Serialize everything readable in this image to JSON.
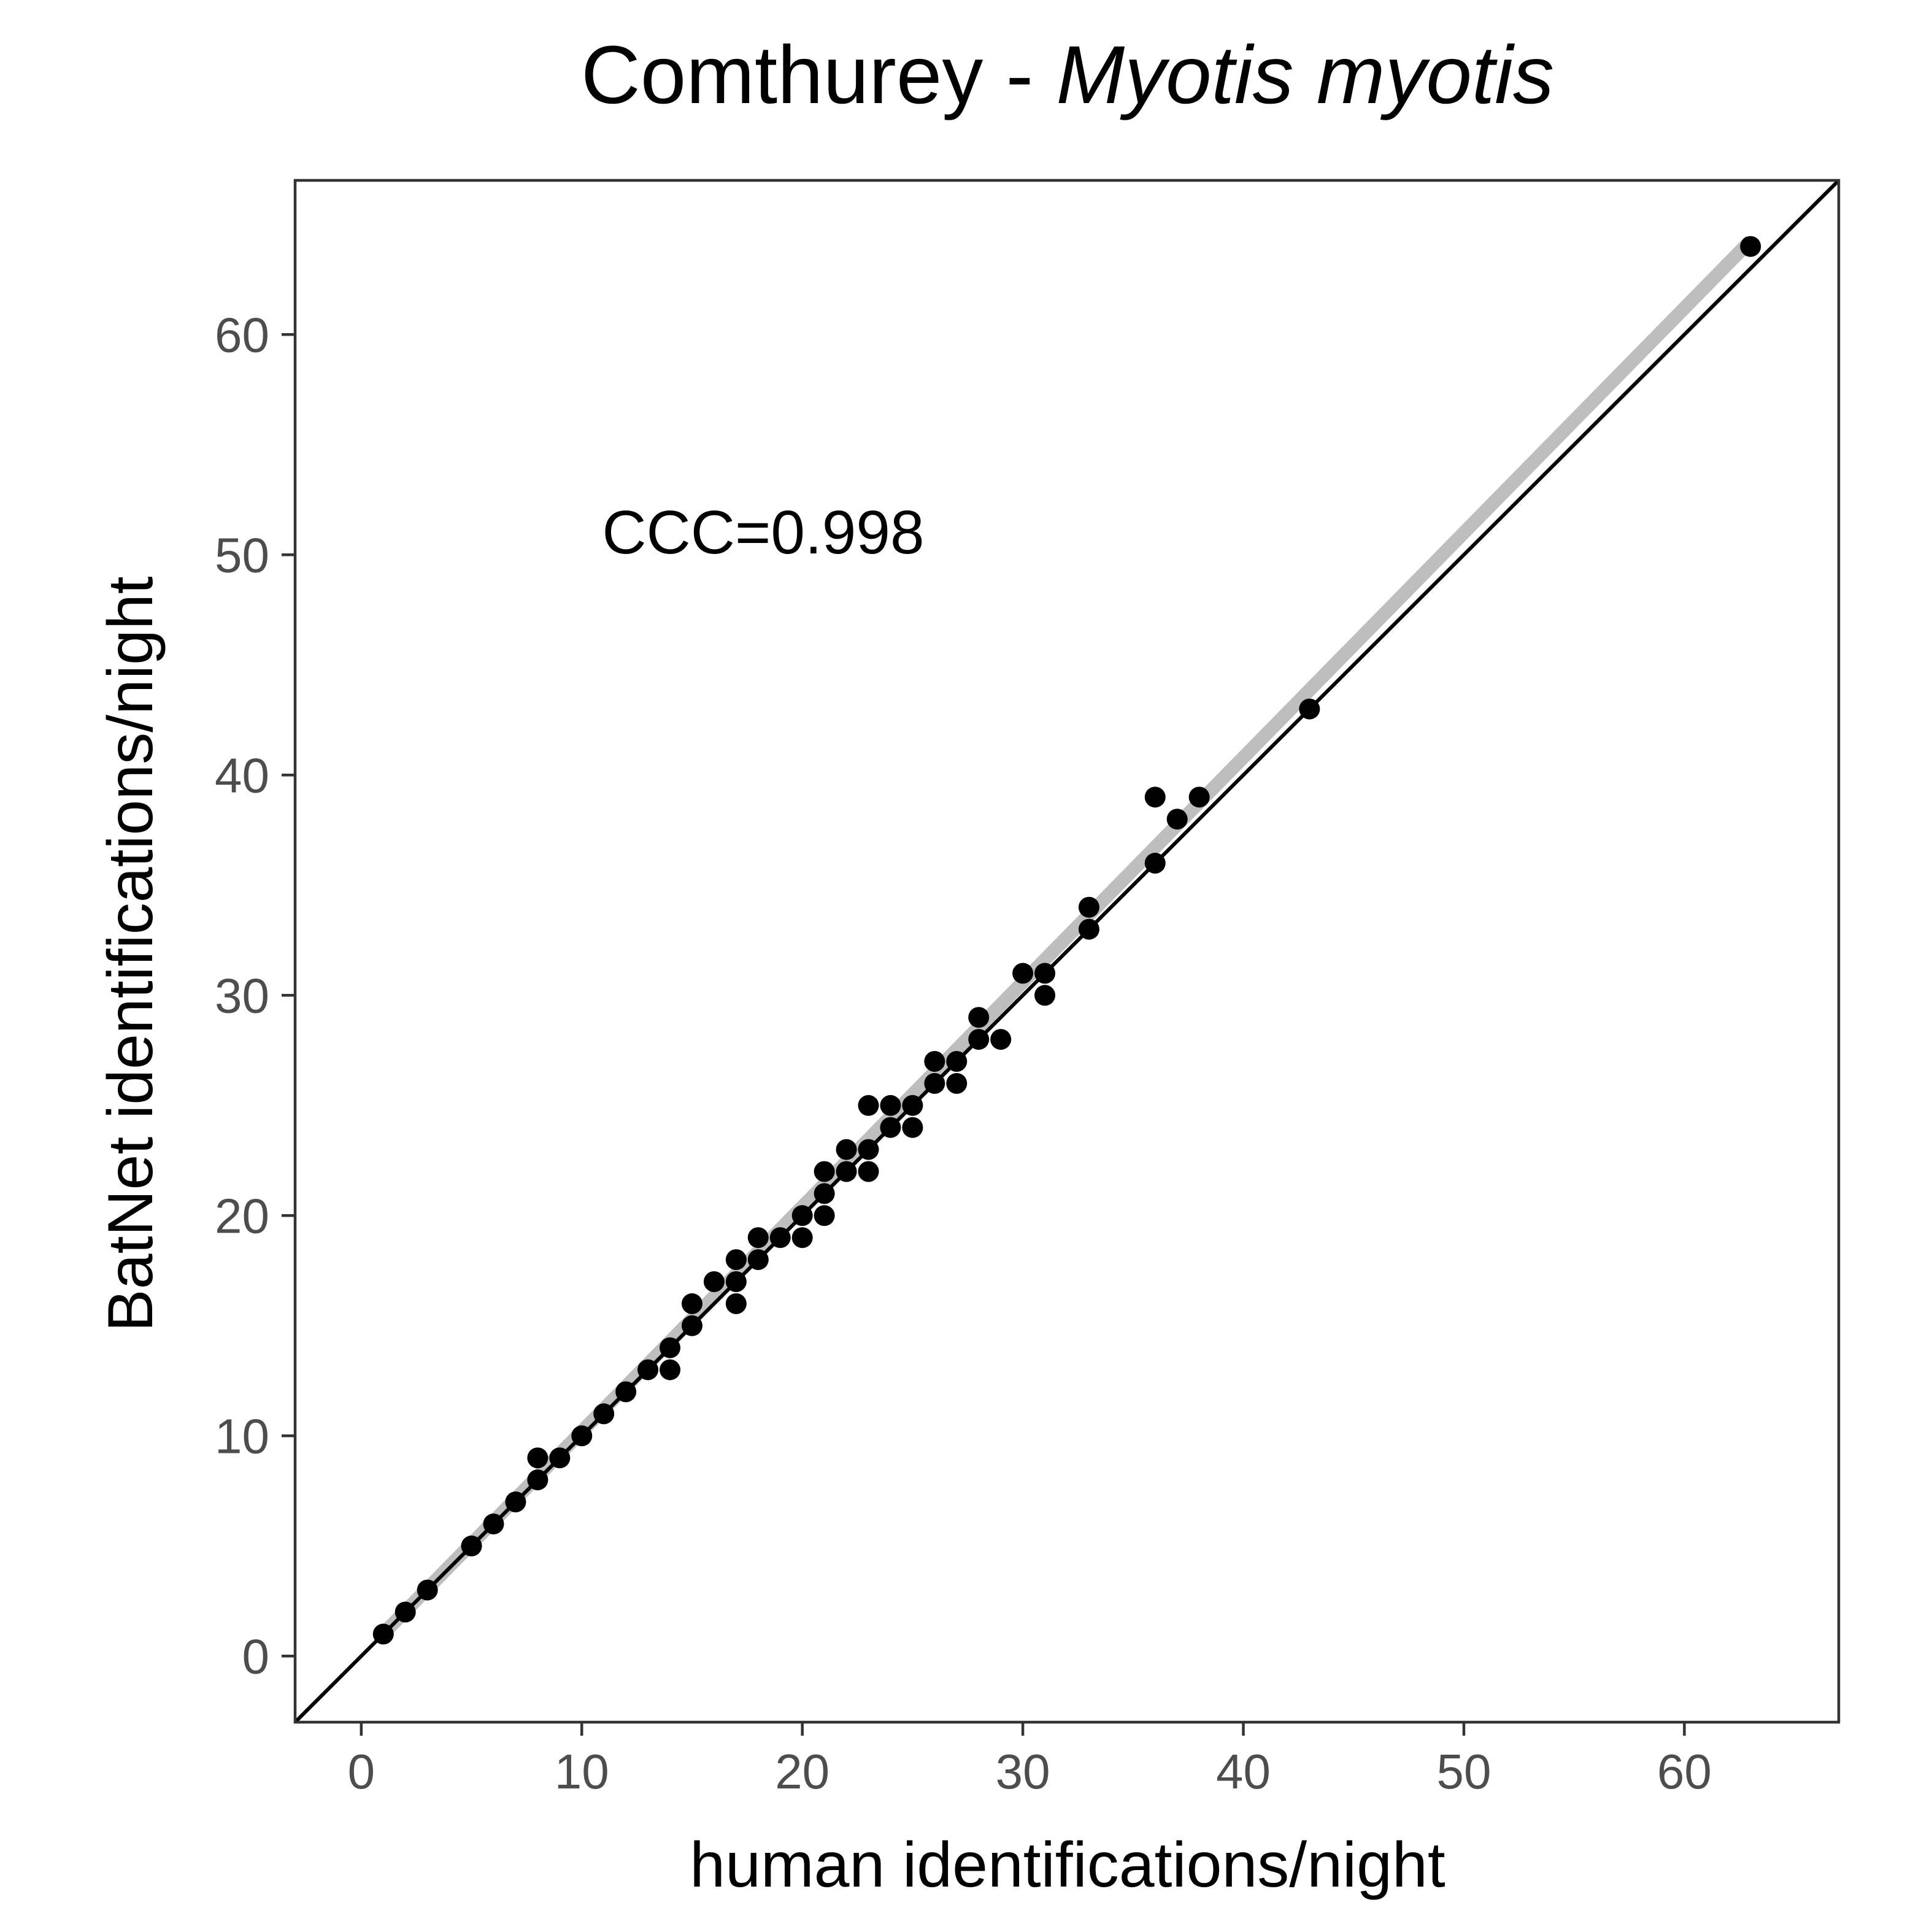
{
  "chart_data": {
    "type": "scatter",
    "title": "Comthurey - ",
    "title_species": "Myotis myotis",
    "xlabel": "human identifications/night",
    "ylabel": "BatNet identifications/night",
    "annotation": "CCC=0.998",
    "xlim": [
      -3,
      67
    ],
    "ylim": [
      -3,
      67
    ],
    "x_ticks": [
      0,
      10,
      20,
      30,
      40,
      50,
      60
    ],
    "y_ticks": [
      0,
      10,
      20,
      30,
      40,
      50,
      60
    ],
    "x_tick_labels": [
      "0",
      "10",
      "20",
      "30",
      "40",
      "50",
      "60"
    ],
    "y_tick_labels": [
      "0",
      "10",
      "20",
      "30",
      "40",
      "50",
      "60"
    ],
    "grid": false,
    "identity_line": true,
    "fit_line": {
      "intercept": 0.0,
      "slope": 1.02,
      "band_color": "#bebebe"
    },
    "point_color": "#000000",
    "points": [
      {
        "x": 1,
        "y": 1
      },
      {
        "x": 2,
        "y": 2
      },
      {
        "x": 3,
        "y": 3
      },
      {
        "x": 5,
        "y": 5
      },
      {
        "x": 6,
        "y": 6
      },
      {
        "x": 7,
        "y": 7
      },
      {
        "x": 8,
        "y": 8
      },
      {
        "x": 8,
        "y": 9
      },
      {
        "x": 9,
        "y": 9
      },
      {
        "x": 10,
        "y": 10
      },
      {
        "x": 11,
        "y": 11
      },
      {
        "x": 12,
        "y": 12
      },
      {
        "x": 13,
        "y": 13
      },
      {
        "x": 14,
        "y": 13
      },
      {
        "x": 14,
        "y": 14
      },
      {
        "x": 15,
        "y": 15
      },
      {
        "x": 15,
        "y": 16
      },
      {
        "x": 16,
        "y": 17
      },
      {
        "x": 17,
        "y": 16
      },
      {
        "x": 17,
        "y": 17
      },
      {
        "x": 17,
        "y": 18
      },
      {
        "x": 18,
        "y": 18
      },
      {
        "x": 18,
        "y": 19
      },
      {
        "x": 19,
        "y": 19
      },
      {
        "x": 20,
        "y": 19
      },
      {
        "x": 20,
        "y": 20
      },
      {
        "x": 21,
        "y": 20
      },
      {
        "x": 21,
        "y": 21
      },
      {
        "x": 21,
        "y": 22
      },
      {
        "x": 22,
        "y": 22
      },
      {
        "x": 22,
        "y": 23
      },
      {
        "x": 23,
        "y": 22
      },
      {
        "x": 23,
        "y": 23
      },
      {
        "x": 23,
        "y": 25
      },
      {
        "x": 24,
        "y": 24
      },
      {
        "x": 24,
        "y": 25
      },
      {
        "x": 25,
        "y": 24
      },
      {
        "x": 25,
        "y": 25
      },
      {
        "x": 26,
        "y": 26
      },
      {
        "x": 26,
        "y": 27
      },
      {
        "x": 27,
        "y": 26
      },
      {
        "x": 27,
        "y": 27
      },
      {
        "x": 28,
        "y": 28
      },
      {
        "x": 28,
        "y": 29
      },
      {
        "x": 29,
        "y": 28
      },
      {
        "x": 30,
        "y": 31
      },
      {
        "x": 31,
        "y": 30
      },
      {
        "x": 31,
        "y": 31
      },
      {
        "x": 33,
        "y": 33
      },
      {
        "x": 33,
        "y": 34
      },
      {
        "x": 36,
        "y": 36
      },
      {
        "x": 36,
        "y": 39
      },
      {
        "x": 37,
        "y": 38
      },
      {
        "x": 38,
        "y": 39
      },
      {
        "x": 43,
        "y": 43
      },
      {
        "x": 63,
        "y": 64
      }
    ]
  }
}
